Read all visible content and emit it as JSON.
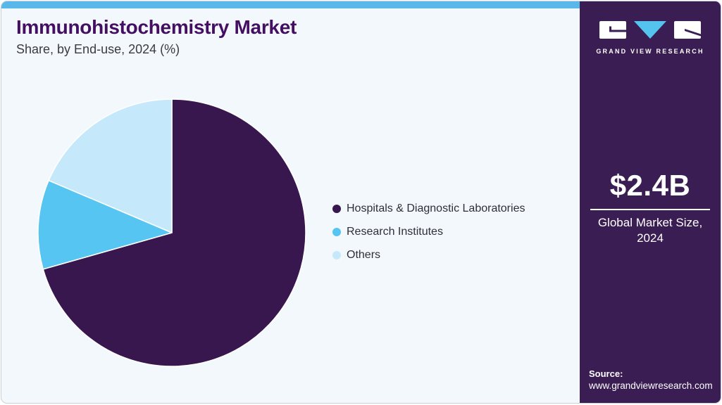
{
  "header": {
    "title": "Immunohistochemistry Market",
    "subtitle": "Share, by End-use, 2024 (%)"
  },
  "chart_data": {
    "type": "pie",
    "title": "Immunohistochemistry Market Share, by End-use, 2024 (%)",
    "labels": [
      "Hospitals & Diagnostic Laboratories",
      "Research Institutes",
      "Others"
    ],
    "values": [
      70.6,
      10.8,
      18.6
    ],
    "colors": [
      "#38164e",
      "#56c5f2",
      "#c5e9fb"
    ],
    "start_angle": "12-oclock",
    "direction": "clockwise",
    "legend_position": "right-center",
    "slice_separator_color": "#ffffff"
  },
  "sidebar": {
    "brand_name": "GRAND VIEW RESEARCH",
    "market_size_value": "$2.4B",
    "market_size_label": "Global Market Size, 2024",
    "source_label": "Source:",
    "source_url": "www.grandviewresearch.com"
  },
  "colors": {
    "card_background": "#f3f8fc",
    "top_strip_accent": "#59b7e9",
    "sidebar_background": "#3a1d52",
    "title_text": "#440f62",
    "logo_triangle": "#54c3ee"
  }
}
